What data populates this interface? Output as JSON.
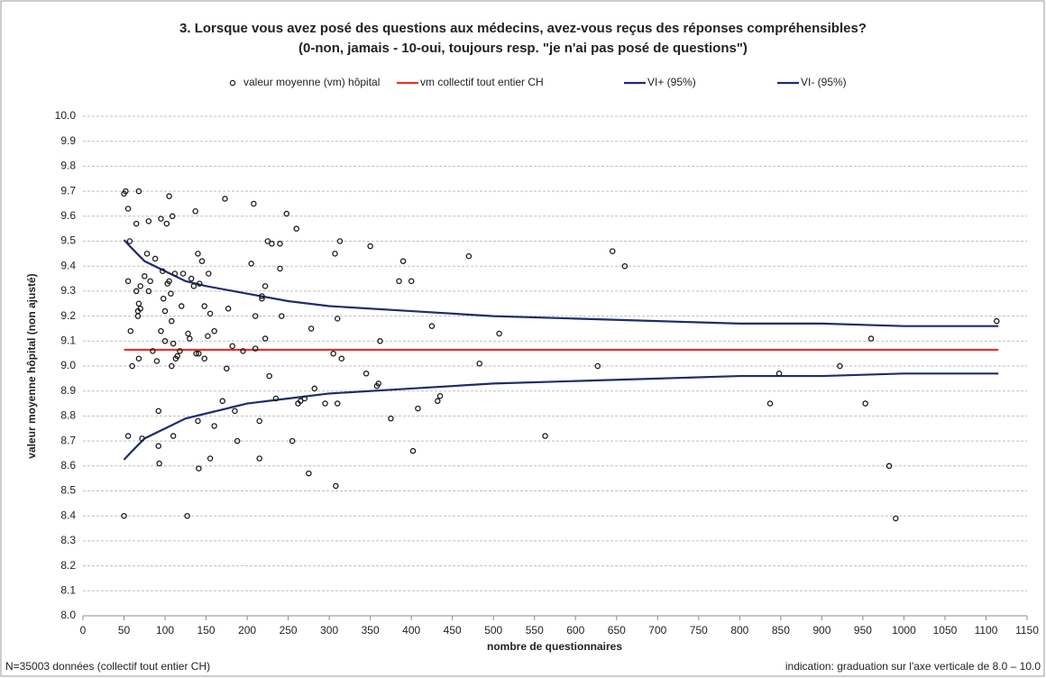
{
  "chart_data": {
    "type": "scatter",
    "title": "3. Lorsque vous avez posé des questions aux médecins, avez-vous reçus des réponses compréhensibles?",
    "subtitle": "(0-non, jamais - 10-oui, toujours resp. \"je n'ai pas posé de questions\")",
    "x_label": "nombre de questionnaires",
    "y_label": "valeur moyenne hôpital (non ajusté)",
    "footnote_left": "N=35003 données (collectif tout entier CH)",
    "footnote_right": "indication: graduation sur l'axe verticale de 8.0 – 10.0",
    "xlim": [
      0,
      1150
    ],
    "xticks": [
      0,
      50,
      100,
      150,
      200,
      250,
      300,
      350,
      400,
      450,
      500,
      550,
      600,
      650,
      700,
      750,
      800,
      850,
      900,
      950,
      1000,
      1050,
      1100,
      1150
    ],
    "ylim": [
      8,
      10
    ],
    "yticks": [
      {
        "value": 8,
        "label": "8.0"
      },
      8.1,
      8.2,
      8.3,
      8.4,
      8.5,
      8.6,
      8.7,
      8.8,
      8.9,
      {
        "value": 9,
        "label": "9.0"
      },
      9.1,
      9.2,
      9.3,
      9.4,
      9.5,
      9.6,
      9.7,
      9.8,
      9.9,
      {
        "value": 10,
        "label": "10.0"
      }
    ],
    "grid": true,
    "legend": "top",
    "series": [
      {
        "name": "valeur moyenne (vm) hôpital",
        "type": "scatter",
        "color": "#1a1a1a",
        "x": [
          50,
          52,
          68,
          50,
          55,
          57,
          55,
          58,
          60,
          55,
          65,
          65,
          67,
          67,
          68,
          70,
          70,
          68,
          72,
          75,
          78,
          80,
          80,
          82,
          85,
          88,
          90,
          92,
          92,
          93,
          95,
          95,
          97,
          98,
          100,
          100,
          102,
          103,
          105,
          105,
          107,
          108,
          108,
          109,
          110,
          110,
          112,
          113,
          115,
          118,
          120,
          122,
          127,
          128,
          130,
          132,
          135,
          137,
          138,
          140,
          140,
          141,
          141,
          142,
          145,
          148,
          148,
          152,
          153,
          155,
          155,
          160,
          160,
          170,
          173,
          175,
          177,
          182,
          185,
          188,
          195,
          205,
          208,
          210,
          210,
          215,
          215,
          218,
          218,
          222,
          222,
          225,
          227,
          230,
          235,
          240,
          240,
          242,
          248,
          255,
          260,
          262,
          265,
          270,
          275,
          278,
          282,
          295,
          305,
          307,
          308,
          310,
          310,
          313,
          315,
          345,
          350,
          358,
          360,
          362,
          375,
          385,
          390,
          400,
          402,
          408,
          425,
          432,
          435,
          470,
          483,
          507,
          563,
          627,
          645,
          660,
          837,
          848,
          922,
          953,
          960,
          982,
          990,
          1113
        ],
        "values": [
          9.69,
          9.7,
          9.7,
          8.4,
          9.63,
          9.5,
          9.34,
          9.14,
          9.0,
          8.72,
          9.3,
          9.57,
          9.2,
          9.22,
          9.25,
          9.23,
          9.32,
          9.03,
          8.71,
          9.36,
          9.45,
          9.58,
          9.3,
          9.34,
          9.06,
          9.43,
          9.02,
          8.82,
          8.68,
          8.61,
          9.14,
          9.59,
          9.38,
          9.27,
          9.1,
          9.22,
          9.57,
          9.33,
          9.68,
          9.34,
          9.29,
          9.18,
          9.0,
          9.6,
          8.72,
          9.09,
          9.37,
          9.03,
          9.04,
          9.06,
          9.24,
          9.37,
          8.4,
          9.13,
          9.11,
          9.35,
          9.32,
          9.62,
          9.05,
          8.78,
          9.45,
          9.05,
          8.59,
          9.33,
          9.42,
          9.24,
          9.03,
          9.12,
          9.37,
          9.21,
          8.63,
          9.14,
          8.76,
          8.86,
          9.67,
          8.99,
          9.23,
          9.08,
          8.82,
          8.7,
          9.06,
          9.41,
          9.65,
          9.2,
          9.07,
          8.78,
          8.63,
          9.27,
          9.28,
          9.11,
          9.32,
          9.5,
          8.96,
          9.49,
          8.87,
          9.49,
          9.39,
          9.2,
          9.61,
          8.7,
          9.55,
          8.85,
          8.86,
          8.87,
          8.57,
          9.15,
          8.91,
          8.85,
          9.05,
          9.45,
          8.52,
          8.85,
          9.19,
          9.5,
          9.03,
          8.97,
          9.48,
          8.92,
          8.93,
          9.1,
          8.79,
          9.34,
          9.42,
          9.34,
          8.66,
          8.83,
          9.16,
          8.86,
          8.88,
          9.44,
          9.01,
          9.13,
          8.72,
          9.0,
          9.46,
          9.4,
          8.85,
          8.97,
          9.0,
          8.85,
          9.11,
          8.6,
          8.39,
          9.18
        ]
      },
      {
        "name": "vm collectif tout entier CH",
        "type": "line",
        "color": "#e8322c",
        "x": [
          50,
          1115
        ],
        "values": [
          9.065,
          9.065
        ]
      },
      {
        "name": "VI+ (95%)",
        "type": "line",
        "color": "#1f2d6b",
        "x": [
          50,
          60,
          75,
          100,
          125,
          150,
          200,
          250,
          300,
          400,
          500,
          600,
          700,
          800,
          900,
          1000,
          1115
        ],
        "values": [
          9.505,
          9.47,
          9.42,
          9.38,
          9.34,
          9.32,
          9.29,
          9.26,
          9.24,
          9.22,
          9.2,
          9.19,
          9.18,
          9.17,
          9.17,
          9.16,
          9.16
        ]
      },
      {
        "name": "VI- (95%)",
        "type": "line",
        "color": "#1f2d6b",
        "x": [
          50,
          60,
          75,
          100,
          125,
          150,
          200,
          250,
          300,
          400,
          500,
          600,
          700,
          800,
          900,
          1000,
          1115
        ],
        "values": [
          8.625,
          8.66,
          8.71,
          8.75,
          8.79,
          8.81,
          8.85,
          8.87,
          8.89,
          8.91,
          8.93,
          8.94,
          8.95,
          8.96,
          8.96,
          8.97,
          8.97
        ]
      }
    ]
  }
}
